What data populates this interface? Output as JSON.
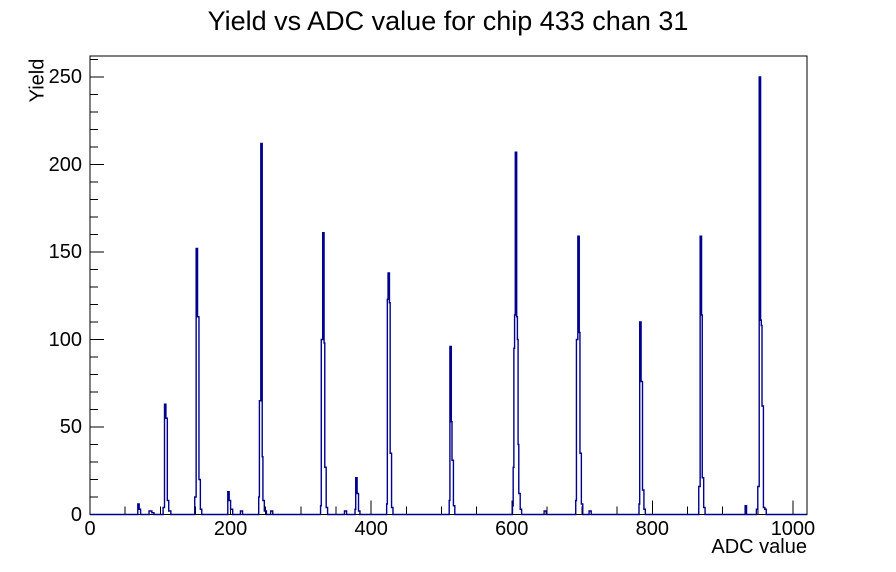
{
  "title": "Yield vs ADC value for chip 433 chan 31",
  "axes": {
    "x_label": "ADC value",
    "y_label": "Yield"
  },
  "chart_data": {
    "type": "line",
    "style": "step-histogram",
    "title": "Yield vs ADC value for chip 433 chan 31",
    "xlabel": "ADC value",
    "ylabel": "Yield",
    "xlim": [
      0,
      1020
    ],
    "ylim": [
      0,
      262
    ],
    "x_major_ticks": [
      0,
      200,
      400,
      600,
      800,
      1000
    ],
    "x_minor_step": 50,
    "y_major_ticks": [
      0,
      50,
      100,
      150,
      200,
      250
    ],
    "y_minor_step": 10,
    "grid": false,
    "legend": "none",
    "line_color": "#00008b",
    "frame_color": "#000000",
    "background": "#ffffff",
    "peaks": [
      {
        "adc": 70,
        "yield": 6
      },
      {
        "adc": 107,
        "yield": 63
      },
      {
        "adc": 152,
        "yield": 152
      },
      {
        "adc": 197,
        "yield": 13
      },
      {
        "adc": 244,
        "yield": 212
      },
      {
        "adc": 331,
        "yield": 161
      },
      {
        "adc": 379,
        "yield": 21
      },
      {
        "adc": 424,
        "yield": 138
      },
      {
        "adc": 513,
        "yield": 96
      },
      {
        "adc": 606,
        "yield": 207
      },
      {
        "adc": 695,
        "yield": 159
      },
      {
        "adc": 783,
        "yield": 110
      },
      {
        "adc": 869,
        "yield": 159
      },
      {
        "adc": 953,
        "yield": 250
      }
    ],
    "steps": [
      [
        0,
        0
      ],
      [
        68,
        6
      ],
      [
        70,
        3
      ],
      [
        72,
        0
      ],
      [
        84,
        2
      ],
      [
        88,
        1
      ],
      [
        91,
        0
      ],
      [
        104,
        4
      ],
      [
        106,
        63
      ],
      [
        108,
        55
      ],
      [
        110,
        8
      ],
      [
        112,
        2
      ],
      [
        115,
        0
      ],
      [
        149,
        10
      ],
      [
        151,
        152
      ],
      [
        153,
        113
      ],
      [
        155,
        20
      ],
      [
        157,
        3
      ],
      [
        159,
        0
      ],
      [
        196,
        13
      ],
      [
        198,
        8
      ],
      [
        200,
        3
      ],
      [
        203,
        0
      ],
      [
        214,
        2
      ],
      [
        217,
        0
      ],
      [
        240,
        10
      ],
      [
        241,
        65
      ],
      [
        243,
        212
      ],
      [
        245,
        33
      ],
      [
        246,
        8
      ],
      [
        248,
        2
      ],
      [
        251,
        0
      ],
      [
        257,
        2
      ],
      [
        260,
        0
      ],
      [
        328,
        5
      ],
      [
        329,
        100
      ],
      [
        331,
        161
      ],
      [
        333,
        98
      ],
      [
        334,
        27
      ],
      [
        336,
        4
      ],
      [
        338,
        0
      ],
      [
        362,
        2
      ],
      [
        365,
        0
      ],
      [
        377,
        3
      ],
      [
        378,
        21
      ],
      [
        380,
        12
      ],
      [
        382,
        2
      ],
      [
        384,
        0
      ],
      [
        422,
        6
      ],
      [
        423,
        123
      ],
      [
        424,
        138
      ],
      [
        426,
        121
      ],
      [
        427,
        35
      ],
      [
        429,
        4
      ],
      [
        431,
        0
      ],
      [
        511,
        8
      ],
      [
        512,
        96
      ],
      [
        514,
        53
      ],
      [
        515,
        31
      ],
      [
        517,
        5
      ],
      [
        519,
        0
      ],
      [
        601,
        5
      ],
      [
        602,
        27
      ],
      [
        603,
        95
      ],
      [
        604,
        114
      ],
      [
        605,
        207
      ],
      [
        607,
        113
      ],
      [
        608,
        100
      ],
      [
        609,
        40
      ],
      [
        610,
        12
      ],
      [
        612,
        3
      ],
      [
        614,
        0
      ],
      [
        646,
        2
      ],
      [
        649,
        0
      ],
      [
        691,
        8
      ],
      [
        692,
        100
      ],
      [
        694,
        159
      ],
      [
        696,
        104
      ],
      [
        697,
        35
      ],
      [
        699,
        6
      ],
      [
        701,
        0
      ],
      [
        710,
        2
      ],
      [
        713,
        0
      ],
      [
        781,
        6
      ],
      [
        782,
        110
      ],
      [
        784,
        76
      ],
      [
        786,
        14
      ],
      [
        788,
        3
      ],
      [
        790,
        0
      ],
      [
        866,
        16
      ],
      [
        868,
        159
      ],
      [
        870,
        114
      ],
      [
        871,
        21
      ],
      [
        873,
        4
      ],
      [
        875,
        0
      ],
      [
        932,
        5
      ],
      [
        934,
        0
      ],
      [
        948,
        3
      ],
      [
        950,
        16
      ],
      [
        952,
        250
      ],
      [
        954,
        111
      ],
      [
        955,
        108
      ],
      [
        956,
        62
      ],
      [
        958,
        4
      ],
      [
        960,
        3
      ],
      [
        962,
        0
      ],
      [
        1020,
        0
      ]
    ]
  }
}
